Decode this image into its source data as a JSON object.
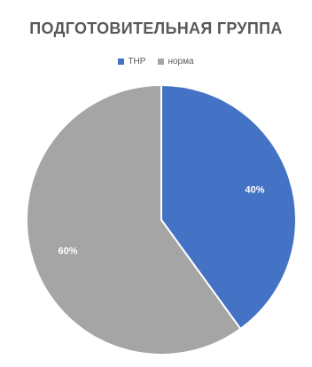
{
  "chart_data": {
    "type": "pie",
    "title": "ПОДГОТОВИТЕЛЬНАЯ ГРУППА",
    "legend_position": "top",
    "slices": [
      {
        "label": "ТНР",
        "value": 40,
        "display": "40%",
        "color": "#4472C4"
      },
      {
        "label": "норма",
        "value": 60,
        "display": "60%",
        "color": "#A5A5A5"
      }
    ]
  }
}
